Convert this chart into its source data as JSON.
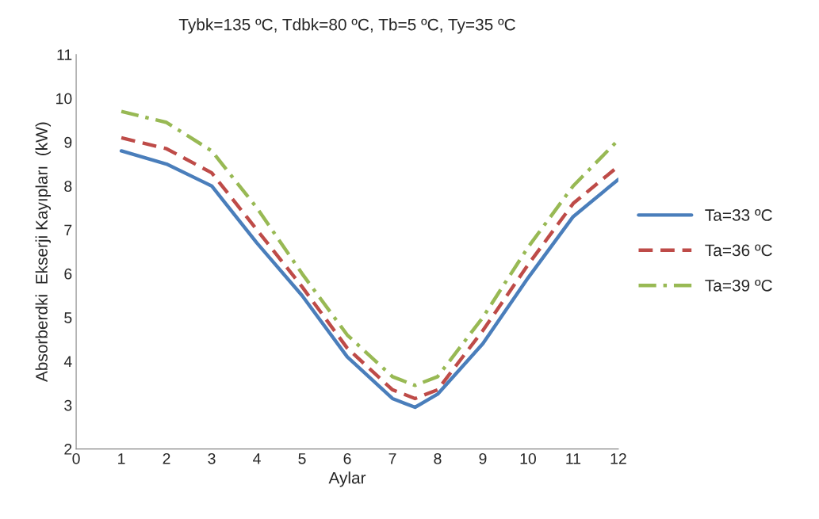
{
  "chart_data": {
    "type": "line",
    "title": "Tybk=135 ºC, Tdbk=80 ºC, Tb=5 ºC, Ty=35 ºC",
    "xlabel": "Aylar",
    "ylabel": "Absorberdki  Ekserji Kayıpları  (kW)",
    "x": [
      1,
      2,
      3,
      4,
      5,
      6,
      7,
      7.5,
      8,
      9,
      10,
      11,
      12
    ],
    "series": [
      {
        "name": "Ta=33 ºC",
        "color": "#4a7ebb",
        "line_style": "solid",
        "values": [
          8.8,
          8.5,
          8.0,
          6.7,
          5.5,
          4.1,
          3.15,
          2.95,
          3.25,
          4.4,
          5.9,
          7.3,
          8.15
        ]
      },
      {
        "name": "Ta=36 ºC",
        "color": "#be4b48",
        "line_style": "dashed",
        "values": [
          9.1,
          8.85,
          8.3,
          7.0,
          5.7,
          4.3,
          3.35,
          3.15,
          3.35,
          4.7,
          6.2,
          7.6,
          8.45
        ]
      },
      {
        "name": "Ta=39 ºC",
        "color": "#98b954",
        "line_style": "dashdot",
        "values": [
          9.7,
          9.45,
          8.8,
          7.5,
          6.0,
          4.6,
          3.65,
          3.45,
          3.65,
          5.0,
          6.6,
          8.0,
          9.05
        ]
      }
    ],
    "xlim": [
      0,
      12
    ],
    "xticks": [
      0,
      1,
      2,
      3,
      4,
      5,
      6,
      7,
      8,
      9,
      10,
      11,
      12
    ],
    "ylim": [
      2,
      11
    ],
    "yticks": [
      2,
      3,
      4,
      5,
      6,
      7,
      8,
      9,
      10,
      11
    ],
    "grid": false,
    "legend": "right",
    "marker": "none"
  }
}
